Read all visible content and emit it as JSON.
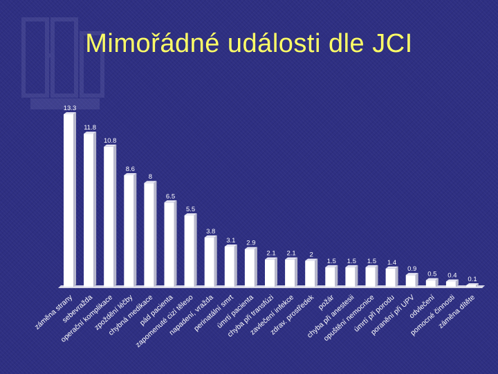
{
  "slide": {
    "title": "Mimořádné události dle JCI"
  },
  "colors": {
    "background": "#2e2f82",
    "title": "#ffff66",
    "bars": "#ffffff",
    "labels": "#ffffff"
  },
  "chart_data": {
    "type": "bar",
    "title": "",
    "xlabel": "",
    "ylabel": "",
    "ylim": [
      0,
      14
    ],
    "grid": false,
    "style": "3d",
    "categories": [
      "záměna strany",
      "sebevražda",
      "operační komplikace",
      "zpoždění léčby",
      "chybná medikace",
      "pád pacienta",
      "zapomenuté cizí těleso",
      "napadení, vražda",
      "perinatální smrt",
      "úmrtí pacienta",
      "chyba při transfúzi",
      "zavlečení infekce",
      "zdrav. prostředek",
      "požár",
      "chyba při anestesii",
      "opuštění nemocnice",
      "úmrtí při porodu",
      "poranění při UPV",
      "odvlečení",
      "pomocné činnosti",
      "záměna dítěte"
    ],
    "values": [
      13.3,
      11.8,
      10.8,
      8.6,
      8,
      6.5,
      5.5,
      3.8,
      3.1,
      2.9,
      2.1,
      2.1,
      2,
      1.5,
      1.5,
      1.5,
      1.4,
      0.9,
      0.5,
      0.4,
      0.1
    ],
    "value_labels": [
      "13.3",
      "11.8",
      "10.8",
      "8.6",
      "8",
      "6.5",
      "5.5",
      "3.8",
      "3.1",
      "2.9",
      "2.1",
      "2.1",
      "2",
      "1.5",
      "1.5",
      "1.5",
      "1.4",
      "0.9",
      "0.5",
      "0.4",
      "0.1"
    ]
  }
}
